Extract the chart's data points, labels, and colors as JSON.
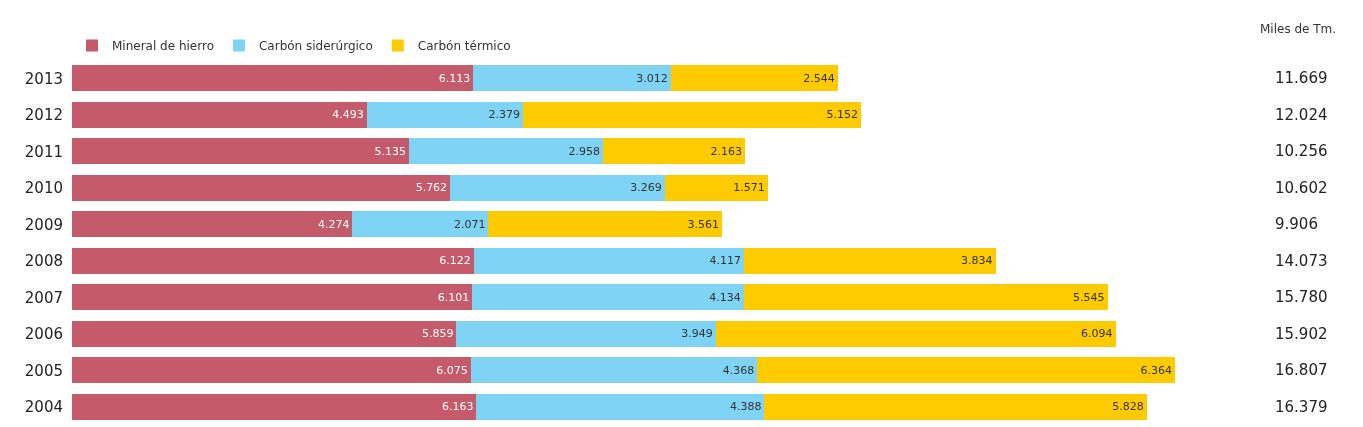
{
  "chart_data": {
    "type": "bar",
    "orientation": "horizontal",
    "stacked": true,
    "legend": "top left",
    "categories": [
      "2013",
      "2012",
      "2011",
      "2010",
      "2009",
      "2008",
      "2007",
      "2006",
      "2005",
      "2004"
    ],
    "series": [
      {
        "name": "Mineral de hierro",
        "color": "#c45a6a",
        "values": [
          6113,
          4493,
          5135,
          5762,
          4274,
          6122,
          6101,
          5859,
          6075,
          6163
        ],
        "value_labels": [
          "6.113",
          "4.493",
          "5.135",
          "5.762",
          "4.274",
          "6.122",
          "6.101",
          "5.859",
          "6.075",
          "6.163"
        ]
      },
      {
        "name": "Carbón siderúrgico",
        "color": "#7fd3f5",
        "values": [
          3012,
          2379,
          2958,
          3269,
          2071,
          4117,
          4134,
          3949,
          4368,
          4388
        ],
        "value_labels": [
          "3.012",
          "2.379",
          "2.958",
          "3.269",
          "2.071",
          "4.117",
          "4.134",
          "3.949",
          "4.368",
          "4.388"
        ]
      },
      {
        "name": "Carbón térmico",
        "color": "#fecb00",
        "values": [
          2544,
          5152,
          2163,
          1571,
          3561,
          3834,
          5545,
          6094,
          6364,
          5828
        ],
        "value_labels": [
          "2.544",
          "5.152",
          "2.163",
          "1.571",
          "3.561",
          "3.834",
          "5.545",
          "6.094",
          "6.364",
          "5.828"
        ]
      }
    ],
    "annotations": [
      "Miles de Tm.",
      "11.669",
      "12.024",
      "10.256",
      "10.602",
      "9.906",
      "14.073",
      "15.780",
      "15.902",
      "16.807",
      "16.379"
    ]
  }
}
